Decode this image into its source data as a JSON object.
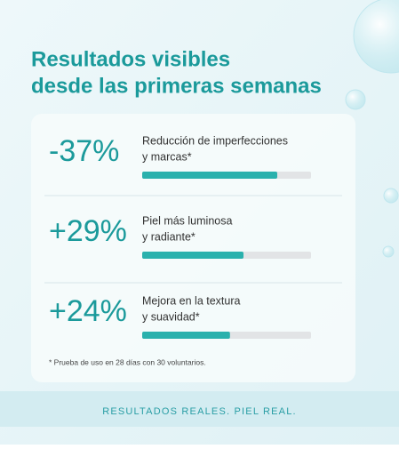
{
  "title_lines": [
    "Resultados visibles",
    "desde las primeras semanas"
  ],
  "bar_range": [
    0,
    100
  ],
  "results": [
    {
      "figure": "-37%",
      "label_lines": [
        "Reducción de imperfecciones",
        "y marcas*"
      ],
      "bar_value": 80
    },
    {
      "figure": "+29%",
      "label_lines": [
        "Piel más luminosa",
        "y radiante*"
      ],
      "bar_value": 60
    },
    {
      "figure": "+24%",
      "label_lines": [
        "Mejora en la textura",
        "y suavidad*"
      ],
      "bar_value": 52
    }
  ],
  "footnote": "* Prueba de uso en 28 días con 30 voluntarios.",
  "footer": "RESULTADOS REALES. PIEL REAL."
}
